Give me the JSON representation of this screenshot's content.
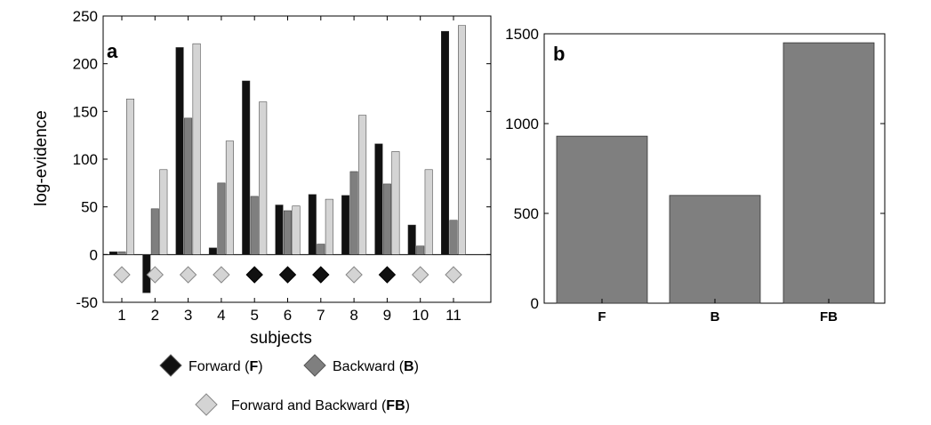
{
  "colors": {
    "forward": "#111111",
    "backward": "#7f7f7f",
    "forward_backward": "#d4d4d4",
    "panel_b_bar": "#7f7f7f"
  },
  "legend": {
    "forward_prefix": "Forward (",
    "forward_abbr": "F",
    "backward_prefix": "Backward (",
    "backward_abbr": "B",
    "fb_prefix": "Forward and Backward (",
    "fb_abbr": "FB",
    "close": ")"
  },
  "chart_data": [
    {
      "type": "bar",
      "panel_label": "a",
      "xlabel": "subjects",
      "ylabel": "log-evidence",
      "ylim": [
        -50,
        250
      ],
      "yticks": [
        -50,
        0,
        50,
        100,
        150,
        200,
        250
      ],
      "categories": [
        "1",
        "2",
        "3",
        "4",
        "5",
        "6",
        "7",
        "8",
        "9",
        "10",
        "11"
      ],
      "series": [
        {
          "key": "F",
          "color": "#111111",
          "values": [
            3,
            -40,
            217,
            7,
            182,
            52,
            63,
            62,
            116,
            31,
            234
          ]
        },
        {
          "key": "B",
          "color": "#7f7f7f",
          "values": [
            3,
            48,
            143,
            75,
            61,
            46,
            11,
            87,
            74,
            9,
            36
          ]
        },
        {
          "key": "FB",
          "color": "#d4d4d4",
          "values": [
            163,
            89,
            221,
            119,
            160,
            51,
            58,
            146,
            108,
            89,
            240
          ]
        }
      ],
      "winning_model": [
        "FB",
        "FB",
        "FB",
        "FB",
        "F",
        "F",
        "F",
        "FB",
        "F",
        "FB",
        "FB"
      ]
    },
    {
      "type": "bar",
      "panel_label": "b",
      "ylim": [
        0,
        1500
      ],
      "yticks": [
        0,
        500,
        1000,
        1500
      ],
      "categories": [
        "F",
        "B",
        "FB"
      ],
      "values": [
        930,
        600,
        1450
      ],
      "color": "#7f7f7f"
    }
  ]
}
